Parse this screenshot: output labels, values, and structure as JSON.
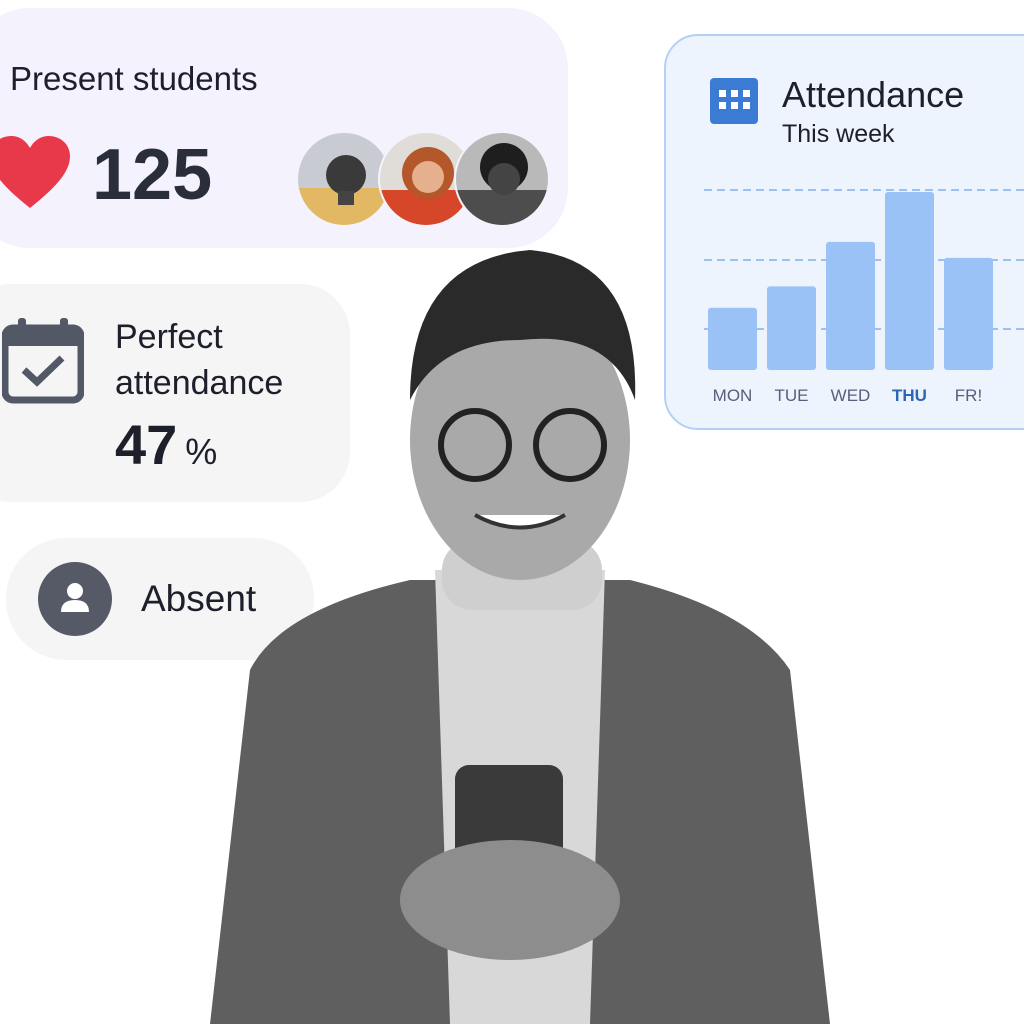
{
  "present_students": {
    "title": "Present students",
    "count": "125",
    "icon": "heart-icon",
    "heart_color": "#e8394b",
    "avatars": [
      "student-1",
      "student-2",
      "student-3"
    ]
  },
  "perfect_attendance": {
    "title_line1": "Perfect",
    "title_line2": "attendance",
    "value": "47",
    "unit": "%",
    "icon": "calendar-check-icon"
  },
  "absent": {
    "label": "Absent",
    "icon": "user-icon"
  },
  "attendance_card": {
    "title": "Attendance",
    "subtitle": "This week",
    "icon": "calendar-icon",
    "accent": "#3b7bd4"
  },
  "chart_data": {
    "type": "bar",
    "categories": [
      "MON",
      "TUE",
      "WED",
      "THU",
      "FR!"
    ],
    "values": [
      35,
      47,
      72,
      100,
      63
    ],
    "highlight": "THU",
    "bar_color": "#9ac2f7",
    "grid": true,
    "ylim": [
      0,
      100
    ]
  }
}
